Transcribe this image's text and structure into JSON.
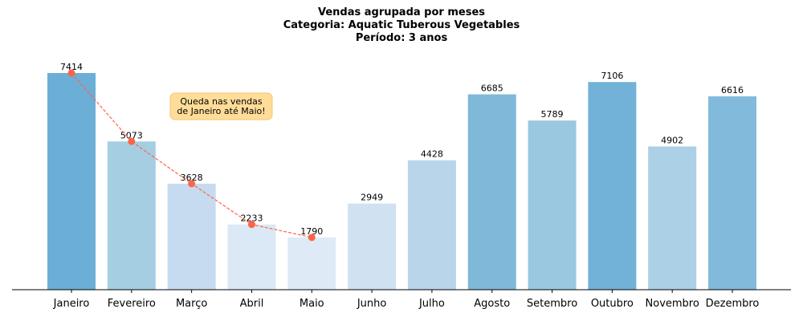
{
  "chart_data": {
    "type": "bar",
    "title_lines": [
      "Vendas agrupada por meses",
      "Categoria: Aquatic Tuberous Vegetables",
      "Período: 3 anos"
    ],
    "categories": [
      "Janeiro",
      "Fevereiro",
      "Março",
      "Abril",
      "Maio",
      "Junho",
      "Julho",
      "Agosto",
      "Setembro",
      "Outubro",
      "Novembro",
      "Dezembro"
    ],
    "values": [
      7414,
      5073,
      3628,
      2233,
      1790,
      2949,
      4428,
      6685,
      5789,
      7106,
      4902,
      6616
    ],
    "bar_colors": [
      "#6baed6",
      "#a6cee3",
      "#c6dbef",
      "#dbe9f6",
      "#deebf7",
      "#d0e1f2",
      "#b9d5ea",
      "#80b8da",
      "#9ac8e0",
      "#73b2d8",
      "#acd0e6",
      "#82badb"
    ],
    "ylim": [
      0,
      8000
    ],
    "highlight_line": {
      "categories": [
        "Janeiro",
        "Fevereiro",
        "Março",
        "Abril",
        "Maio"
      ],
      "color": "#ff6347"
    },
    "annotation": {
      "lines": [
        "Queda nas vendas",
        "de Janeiro até Maio!"
      ],
      "box_color": "#ffdd99",
      "border_color": "#f5c46b"
    },
    "grid": false
  }
}
